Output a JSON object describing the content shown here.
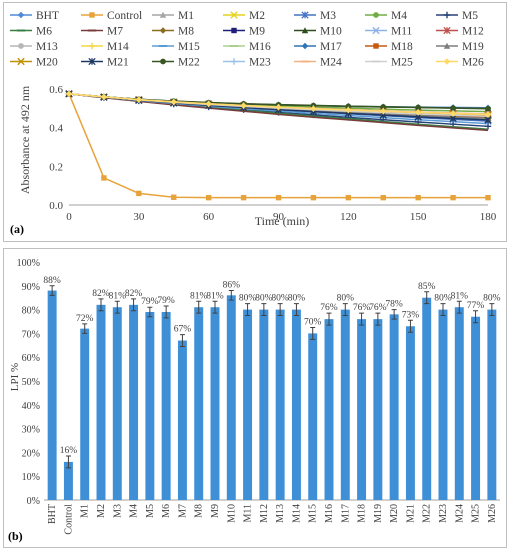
{
  "chart_data": [
    {
      "type": "line",
      "panel_label": "(a)",
      "xlabel": "Time (min)",
      "ylabel": "Absorbance at 492 nm",
      "xlim": [
        0,
        180
      ],
      "ylim": [
        0,
        0.6
      ],
      "xticks": [
        0,
        30,
        60,
        90,
        120,
        150,
        180
      ],
      "yticks": [
        0.0,
        0.2,
        0.4,
        0.6
      ],
      "ytick_labels": [
        "0.0",
        "0.2",
        "0.4",
        "0.6"
      ],
      "x": [
        0,
        15,
        30,
        45,
        60,
        75,
        90,
        105,
        120,
        135,
        150,
        165,
        180
      ],
      "legend_position": "top",
      "grid": false,
      "series": [
        {
          "name": "BHT",
          "color": "#4f8bd6",
          "marker": "diamond",
          "values": [
            0.575,
            0.56,
            0.545,
            0.535,
            0.528,
            0.522,
            0.518,
            0.514,
            0.511,
            0.508,
            0.506,
            0.505,
            0.503
          ]
        },
        {
          "name": "Control",
          "color": "#e8a23a",
          "marker": "square",
          "values": [
            0.575,
            0.14,
            0.06,
            0.04,
            0.038,
            0.038,
            0.038,
            0.038,
            0.038,
            0.038,
            0.038,
            0.038,
            0.038
          ]
        },
        {
          "name": "M1",
          "color": "#a5a5a5",
          "marker": "triangle",
          "values": [
            0.575,
            0.56,
            0.545,
            0.532,
            0.522,
            0.512,
            0.502,
            0.494,
            0.486,
            0.478,
            0.47,
            0.463,
            0.456
          ]
        },
        {
          "name": "M2",
          "color": "#e6d21e",
          "marker": "x",
          "values": [
            0.575,
            0.558,
            0.542,
            0.53,
            0.52,
            0.51,
            0.5,
            0.491,
            0.482,
            0.474,
            0.466,
            0.458,
            0.45
          ]
        },
        {
          "name": "M3",
          "color": "#4472c4",
          "marker": "star",
          "values": [
            0.575,
            0.557,
            0.541,
            0.527,
            0.515,
            0.503,
            0.492,
            0.482,
            0.472,
            0.462,
            0.452,
            0.443,
            0.434
          ]
        },
        {
          "name": "M4",
          "color": "#70ad47",
          "marker": "circle",
          "values": [
            0.575,
            0.56,
            0.546,
            0.535,
            0.526,
            0.518,
            0.512,
            0.506,
            0.501,
            0.496,
            0.491,
            0.487,
            0.483
          ]
        },
        {
          "name": "M5",
          "color": "#264478",
          "marker": "plus",
          "values": [
            0.575,
            0.556,
            0.538,
            0.522,
            0.507,
            0.493,
            0.479,
            0.466,
            0.453,
            0.441,
            0.429,
            0.418,
            0.407
          ]
        },
        {
          "name": "M6",
          "color": "#3a7d44",
          "marker": "none",
          "values": [
            0.575,
            0.556,
            0.538,
            0.521,
            0.505,
            0.49,
            0.475,
            0.46,
            0.446,
            0.432,
            0.418,
            0.405,
            0.392
          ]
        },
        {
          "name": "M7",
          "color": "#7a3b3b",
          "marker": "none",
          "values": [
            0.575,
            0.555,
            0.536,
            0.518,
            0.501,
            0.485,
            0.469,
            0.454,
            0.44,
            0.426,
            0.412,
            0.399,
            0.386
          ]
        },
        {
          "name": "M8",
          "color": "#8a6d1e",
          "marker": "diamond",
          "values": [
            0.575,
            0.559,
            0.544,
            0.531,
            0.52,
            0.51,
            0.501,
            0.493,
            0.485,
            0.478,
            0.471,
            0.465,
            0.459
          ]
        },
        {
          "name": "M9",
          "color": "#1f1f7a",
          "marker": "square",
          "values": [
            0.575,
            0.558,
            0.543,
            0.529,
            0.517,
            0.506,
            0.496,
            0.487,
            0.478,
            0.47,
            0.462,
            0.455,
            0.448
          ]
        },
        {
          "name": "M10",
          "color": "#2d4d1e",
          "marker": "triangle",
          "values": [
            0.575,
            0.56,
            0.547,
            0.537,
            0.53,
            0.524,
            0.519,
            0.515,
            0.511,
            0.508,
            0.505,
            0.502,
            0.5
          ]
        },
        {
          "name": "M11",
          "color": "#8fb4e3",
          "marker": "x",
          "values": [
            0.575,
            0.559,
            0.544,
            0.532,
            0.521,
            0.512,
            0.503,
            0.495,
            0.488,
            0.481,
            0.475,
            0.469,
            0.463
          ]
        },
        {
          "name": "M12",
          "color": "#c0504d",
          "marker": "star",
          "values": [
            0.575,
            0.559,
            0.545,
            0.533,
            0.523,
            0.514,
            0.506,
            0.499,
            0.492,
            0.486,
            0.48,
            0.475,
            0.47
          ]
        },
        {
          "name": "M13",
          "color": "#b7b7b7",
          "marker": "circle",
          "values": [
            0.575,
            0.559,
            0.545,
            0.533,
            0.522,
            0.513,
            0.505,
            0.497,
            0.49,
            0.484,
            0.478,
            0.472,
            0.467
          ]
        },
        {
          "name": "M14",
          "color": "#f0d84a",
          "marker": "plus",
          "values": [
            0.575,
            0.559,
            0.545,
            0.533,
            0.522,
            0.513,
            0.504,
            0.496,
            0.489,
            0.482,
            0.476,
            0.47,
            0.465
          ]
        },
        {
          "name": "M15",
          "color": "#5b9bd5",
          "marker": "none",
          "values": [
            0.575,
            0.557,
            0.54,
            0.525,
            0.511,
            0.498,
            0.486,
            0.474,
            0.463,
            0.452,
            0.441,
            0.431,
            0.421
          ]
        },
        {
          "name": "M16",
          "color": "#a9d18e",
          "marker": "none",
          "values": [
            0.575,
            0.558,
            0.542,
            0.528,
            0.516,
            0.505,
            0.495,
            0.486,
            0.477,
            0.469,
            0.461,
            0.454,
            0.447
          ]
        },
        {
          "name": "M17",
          "color": "#2e75b6",
          "marker": "diamond",
          "values": [
            0.575,
            0.559,
            0.544,
            0.532,
            0.521,
            0.511,
            0.502,
            0.494,
            0.486,
            0.479,
            0.472,
            0.466,
            0.46
          ]
        },
        {
          "name": "M18",
          "color": "#c55a11",
          "marker": "square",
          "values": [
            0.575,
            0.558,
            0.543,
            0.53,
            0.518,
            0.508,
            0.498,
            0.489,
            0.481,
            0.473,
            0.466,
            0.459,
            0.452
          ]
        },
        {
          "name": "M19",
          "color": "#7f7f7f",
          "marker": "triangle",
          "values": [
            0.575,
            0.558,
            0.543,
            0.53,
            0.518,
            0.507,
            0.497,
            0.488,
            0.479,
            0.471,
            0.463,
            0.456,
            0.449
          ]
        },
        {
          "name": "M20",
          "color": "#bf9000",
          "marker": "x",
          "values": [
            0.575,
            0.559,
            0.544,
            0.532,
            0.522,
            0.512,
            0.504,
            0.496,
            0.489,
            0.482,
            0.476,
            0.47,
            0.464
          ]
        },
        {
          "name": "M21",
          "color": "#1f3864",
          "marker": "star",
          "values": [
            0.575,
            0.558,
            0.542,
            0.528,
            0.515,
            0.504,
            0.493,
            0.483,
            0.474,
            0.465,
            0.456,
            0.448,
            0.44
          ]
        },
        {
          "name": "M22",
          "color": "#375623",
          "marker": "circle",
          "values": [
            0.575,
            0.56,
            0.547,
            0.537,
            0.529,
            0.523,
            0.518,
            0.514,
            0.51,
            0.507,
            0.504,
            0.501,
            0.498
          ]
        },
        {
          "name": "M23",
          "color": "#9dc3e6",
          "marker": "plus",
          "values": [
            0.575,
            0.559,
            0.545,
            0.533,
            0.523,
            0.514,
            0.506,
            0.499,
            0.492,
            0.486,
            0.48,
            0.474,
            0.469
          ]
        },
        {
          "name": "M24",
          "color": "#f4b183",
          "marker": "none",
          "values": [
            0.575,
            0.559,
            0.545,
            0.534,
            0.524,
            0.515,
            0.507,
            0.5,
            0.493,
            0.487,
            0.481,
            0.476,
            0.471
          ]
        },
        {
          "name": "M25",
          "color": "#d0d0d0",
          "marker": "none",
          "values": [
            0.575,
            0.559,
            0.544,
            0.531,
            0.52,
            0.51,
            0.501,
            0.493,
            0.485,
            0.478,
            0.471,
            0.465,
            0.459
          ]
        },
        {
          "name": "M26",
          "color": "#ffd966",
          "marker": "diamond",
          "values": [
            0.575,
            0.559,
            0.545,
            0.533,
            0.523,
            0.514,
            0.506,
            0.498,
            0.491,
            0.485,
            0.479,
            0.473,
            0.468
          ]
        }
      ]
    },
    {
      "type": "bar",
      "panel_label": "(b)",
      "ylabel": "LPI %",
      "ylim": [
        0,
        100
      ],
      "yticks": [
        0,
        10,
        20,
        30,
        40,
        50,
        60,
        70,
        80,
        90,
        100
      ],
      "ytick_labels": [
        "0%",
        "10%",
        "20%",
        "30%",
        "40%",
        "50%",
        "60%",
        "70%",
        "80%",
        "90%",
        "100%"
      ],
      "bar_color": "#3f8fd6",
      "error_color": "#404040",
      "categories": [
        "BHT",
        "Control",
        "M1",
        "M2",
        "M3",
        "M4",
        "M5",
        "M6",
        "M7",
        "M8",
        "M9",
        "M10",
        "M11",
        "M12",
        "M13",
        "M14",
        "M15",
        "M16",
        "M17",
        "M18",
        "M19",
        "M20",
        "M21",
        "M22",
        "M23",
        "M24",
        "M25",
        "M26"
      ],
      "values": [
        88,
        16,
        72,
        82,
        81,
        82,
        79,
        79,
        67,
        81,
        81,
        86,
        80,
        80,
        80,
        80,
        70,
        76,
        80,
        76,
        76,
        78,
        73,
        85,
        80,
        81,
        77,
        80
      ],
      "errors": [
        2,
        2.5,
        2,
        2.5,
        2.5,
        2.5,
        2,
        2.5,
        2.5,
        2.5,
        2.5,
        2,
        2.5,
        2.5,
        2.5,
        2.5,
        2.5,
        2.5,
        2.5,
        2.5,
        2.5,
        2,
        2.5,
        2.5,
        2.5,
        2.5,
        2.5,
        2.5
      ],
      "data_labels": [
        "88%",
        "16%",
        "72%",
        "82%",
        "81%",
        "82%",
        "79%",
        "79%",
        "67%",
        "81%",
        "81%",
        "86%",
        "80%",
        "80%",
        "80%",
        "80%",
        "70%",
        "76%",
        "80%",
        "76%",
        "76%",
        "78%",
        "73%",
        "85%",
        "80%",
        "81%",
        "77%",
        "80%"
      ]
    }
  ]
}
